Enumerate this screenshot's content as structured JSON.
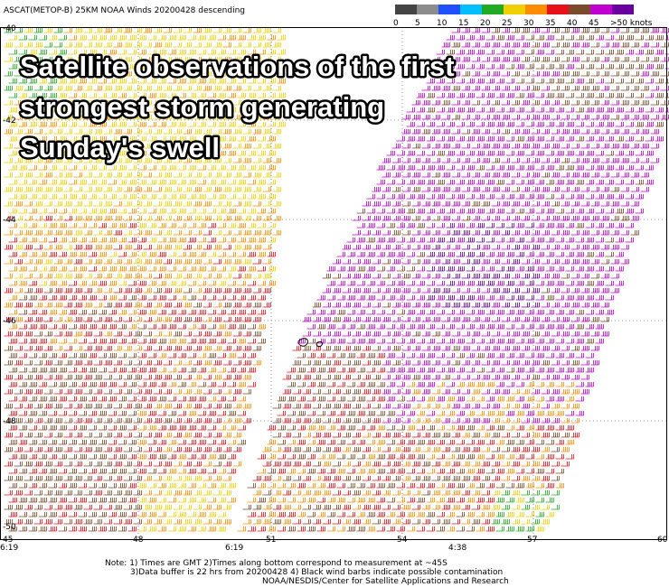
{
  "header": {
    "title": "ASCAT(METOP-B) 25KM NOAA Winds 20200428 descending"
  },
  "colorbar": {
    "ticks": [
      0,
      5,
      10,
      15,
      20,
      25,
      30,
      35,
      40,
      45,
      {
        "value": 50,
        "label": ">50 knots"
      }
    ],
    "colors": [
      "#444444",
      "#8c8c8c",
      "#1f4fff",
      "#00bfff",
      "#22aa22",
      "#f0d000",
      "#ff8c00",
      "#e8101a",
      "#7a4a2a",
      "#c000d0",
      "#6a00a0"
    ]
  },
  "overlay": {
    "lines": [
      "Satellite observations of the first",
      "strongest storm generating",
      "Sunday's swell"
    ]
  },
  "axes": {
    "lat_labels": [
      "-40",
      "-42",
      "-44",
      "-46",
      "-48",
      "-50"
    ],
    "lon_labels": [
      "45",
      "48",
      "51",
      "54",
      "57",
      "60"
    ],
    "time_labels": [
      "6:19",
      "6:19",
      "4:38"
    ]
  },
  "notes": [
    "Note: 1) Times are GMT 2)Times along bottom correspond to measurement at ~45S",
    "3)Data buffer is 22 hrs from 20200428 4) Black wind barbs indicate possible contamination",
    "NOAA/NESDIS/Center for Satellite Applications and Research"
  ]
}
